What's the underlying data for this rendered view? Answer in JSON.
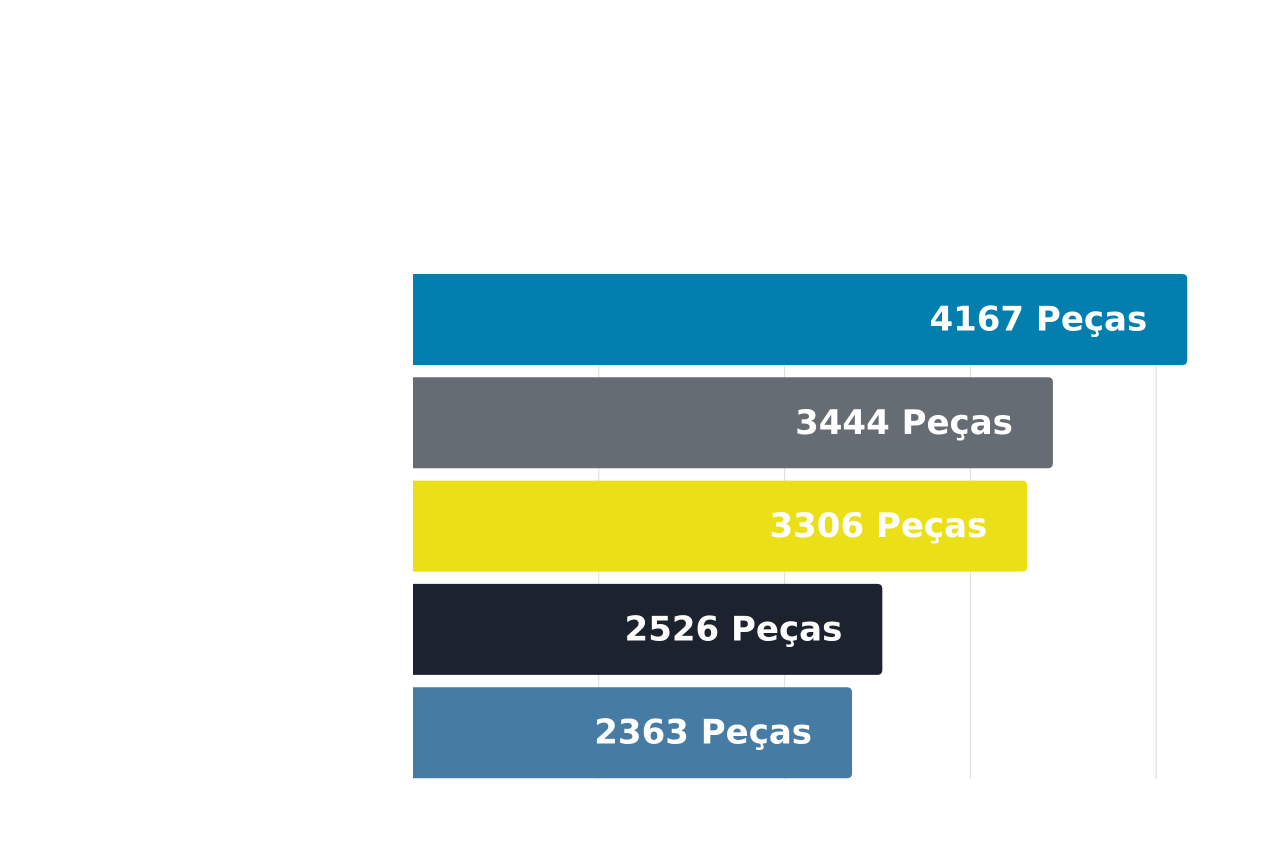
{
  "chart_data": {
    "type": "bar",
    "orientation": "horizontal",
    "title": "",
    "xlabel": "",
    "ylabel": "",
    "unit": "Peças",
    "xlim": [
      0,
      4000
    ],
    "grid": true,
    "series": [
      {
        "values": [
          4167,
          3444,
          3306,
          2526,
          2363
        ],
        "labels": [
          "4167 Peças",
          "3444 Peças",
          "3306 Peças",
          "2526 Peças",
          "2363 Peças"
        ],
        "colors": [
          "#027faf",
          "#656c74",
          "#ebe018",
          "#1c222e",
          "#467ba3"
        ]
      }
    ]
  }
}
